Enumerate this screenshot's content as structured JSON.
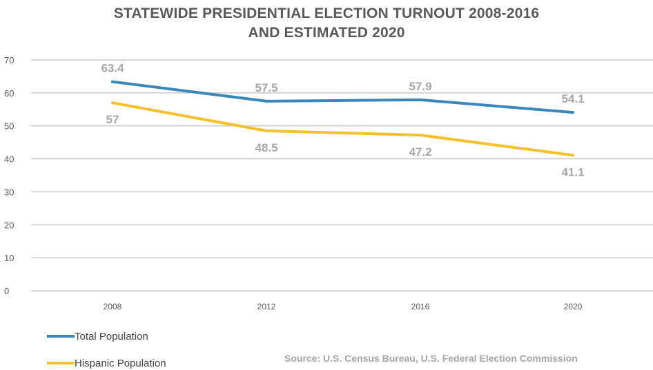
{
  "chart_data": {
    "type": "line",
    "title_line1": "STATEWIDE PRESIDENTIAL ELECTION TURNOUT 2008-2016",
    "title_line2": "AND ESTIMATED 2020",
    "categories": [
      "2008",
      "2012",
      "2016",
      "2020"
    ],
    "yticks": [
      0,
      10,
      20,
      30,
      40,
      50,
      60,
      70
    ],
    "ylim": [
      0,
      70
    ],
    "grid": true,
    "legend_position": "bottom-left",
    "series": [
      {
        "name": "Total Population",
        "values": [
          63.4,
          57.5,
          57.9,
          54.1
        ],
        "labels": [
          "63.4",
          "57.5",
          "57.9",
          "54.1"
        ],
        "color": "#3a87bb",
        "label_side": [
          "above",
          "above",
          "above",
          "above"
        ]
      },
      {
        "name": "Hispanic Population",
        "values": [
          57,
          48.5,
          47.2,
          41.1
        ],
        "labels": [
          "57",
          "48.5",
          "47.2",
          "41.1"
        ],
        "color": "#f5c02c",
        "label_side": [
          "below",
          "below",
          "below",
          "below"
        ]
      }
    ],
    "source": "Source: U.S. Census Bureau, U.S. Federal Election Commission",
    "label_color": "#a6a6a6",
    "grid_color": "#bfbfbf"
  }
}
